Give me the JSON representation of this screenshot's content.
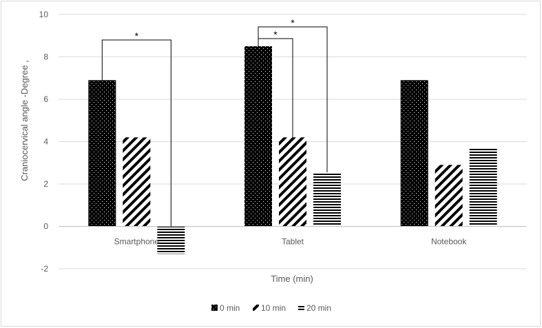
{
  "chart_data": {
    "type": "bar",
    "title": "",
    "xlabel": "Time (min)",
    "ylabel": "Craniocervical angle -Degree ,",
    "ylim": [
      -2,
      10
    ],
    "yticks": [
      "-2",
      "0",
      "2",
      "4",
      "6",
      "8",
      "10"
    ],
    "grid": true,
    "legend_position": "bottom",
    "categories": [
      "Smartphone",
      "Tablet",
      "Notebook"
    ],
    "series": [
      {
        "name": "0 min",
        "values": [
          6.9,
          8.5,
          6.9
        ],
        "pattern": "dots",
        "color": "#000000"
      },
      {
        "name": "10 min",
        "values": [
          4.2,
          4.2,
          2.9
        ],
        "pattern": "diagonal-stripes",
        "color": "#000000"
      },
      {
        "name": "20 min",
        "values": [
          -1.3,
          2.55,
          3.7
        ],
        "pattern": "horizontal-stripes",
        "color": "#000000"
      }
    ],
    "significance": [
      {
        "category": "Smartphone",
        "from": "0 min",
        "to": "20 min",
        "label": "*"
      },
      {
        "category": "Tablet",
        "from": "0 min",
        "to": "10 min",
        "label": "*"
      },
      {
        "category": "Tablet",
        "from": "0 min",
        "to": "20 min",
        "label": "*"
      }
    ]
  }
}
